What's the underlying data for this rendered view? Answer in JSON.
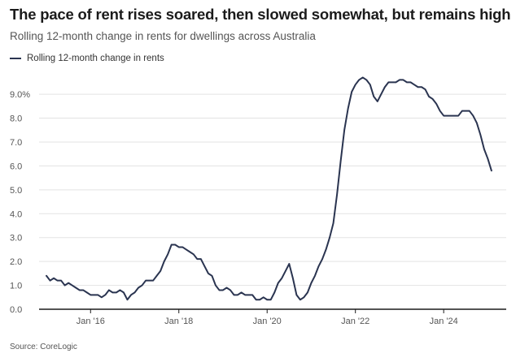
{
  "title": "The pace of rent rises soared, then slowed somewhat, but remains high",
  "subtitle": "Rolling 12-month change in rents for dwellings across Australia",
  "source": "Source: CoreLogic",
  "colors": {
    "line": "#2a3450",
    "grid": "#e3e3e3",
    "axis": "#1b1b1b"
  },
  "chart_data": {
    "type": "line",
    "title": "The pace of rent rises soared, then slowed somewhat, but remains high",
    "xlabel": "",
    "ylabel": "",
    "ylim": [
      0,
      10
    ],
    "xlim": [
      "2014-11",
      "2025-06"
    ],
    "grid": true,
    "legend_position": "top-left",
    "y_ticks": [
      {
        "value": 0,
        "label": "0.0"
      },
      {
        "value": 1,
        "label": "1.0"
      },
      {
        "value": 2,
        "label": "2.0"
      },
      {
        "value": 3,
        "label": "3.0"
      },
      {
        "value": 4,
        "label": "4.0"
      },
      {
        "value": 5,
        "label": "5.0"
      },
      {
        "value": 6,
        "label": "6.0"
      },
      {
        "value": 7,
        "label": "7.0"
      },
      {
        "value": 8,
        "label": "8.0"
      },
      {
        "value": 9,
        "label": "9.0%"
      }
    ],
    "x_ticks": [
      {
        "date": "2016-01",
        "label": "Jan '16"
      },
      {
        "date": "2018-01",
        "label": "Jan '18"
      },
      {
        "date": "2020-01",
        "label": "Jan '20"
      },
      {
        "date": "2022-01",
        "label": "Jan '22"
      },
      {
        "date": "2024-01",
        "label": "Jan '24"
      }
    ],
    "series": [
      {
        "name": "Rolling 12-month change in rents",
        "points": [
          [
            "2015-01",
            1.4
          ],
          [
            "2015-02",
            1.2
          ],
          [
            "2015-03",
            1.3
          ],
          [
            "2015-04",
            1.2
          ],
          [
            "2015-05",
            1.2
          ],
          [
            "2015-06",
            1.0
          ],
          [
            "2015-07",
            1.1
          ],
          [
            "2015-08",
            1.0
          ],
          [
            "2015-09",
            0.9
          ],
          [
            "2015-10",
            0.8
          ],
          [
            "2015-11",
            0.8
          ],
          [
            "2015-12",
            0.7
          ],
          [
            "2016-01",
            0.6
          ],
          [
            "2016-02",
            0.6
          ],
          [
            "2016-03",
            0.6
          ],
          [
            "2016-04",
            0.5
          ],
          [
            "2016-05",
            0.6
          ],
          [
            "2016-06",
            0.8
          ],
          [
            "2016-07",
            0.7
          ],
          [
            "2016-08",
            0.7
          ],
          [
            "2016-09",
            0.8
          ],
          [
            "2016-10",
            0.7
          ],
          [
            "2016-11",
            0.4
          ],
          [
            "2016-12",
            0.6
          ],
          [
            "2017-01",
            0.7
          ],
          [
            "2017-02",
            0.9
          ],
          [
            "2017-03",
            1.0
          ],
          [
            "2017-04",
            1.2
          ],
          [
            "2017-05",
            1.2
          ],
          [
            "2017-06",
            1.2
          ],
          [
            "2017-07",
            1.4
          ],
          [
            "2017-08",
            1.6
          ],
          [
            "2017-09",
            2.0
          ],
          [
            "2017-10",
            2.3
          ],
          [
            "2017-11",
            2.7
          ],
          [
            "2017-12",
            2.7
          ],
          [
            "2018-01",
            2.6
          ],
          [
            "2018-02",
            2.6
          ],
          [
            "2018-03",
            2.5
          ],
          [
            "2018-04",
            2.4
          ],
          [
            "2018-05",
            2.3
          ],
          [
            "2018-06",
            2.1
          ],
          [
            "2018-07",
            2.1
          ],
          [
            "2018-08",
            1.8
          ],
          [
            "2018-09",
            1.5
          ],
          [
            "2018-10",
            1.4
          ],
          [
            "2018-11",
            1.0
          ],
          [
            "2018-12",
            0.8
          ],
          [
            "2019-01",
            0.8
          ],
          [
            "2019-02",
            0.9
          ],
          [
            "2019-03",
            0.8
          ],
          [
            "2019-04",
            0.6
          ],
          [
            "2019-05",
            0.6
          ],
          [
            "2019-06",
            0.7
          ],
          [
            "2019-07",
            0.6
          ],
          [
            "2019-08",
            0.6
          ],
          [
            "2019-09",
            0.6
          ],
          [
            "2019-10",
            0.4
          ],
          [
            "2019-11",
            0.4
          ],
          [
            "2019-12",
            0.5
          ],
          [
            "2020-01",
            0.4
          ],
          [
            "2020-02",
            0.4
          ],
          [
            "2020-03",
            0.7
          ],
          [
            "2020-04",
            1.1
          ],
          [
            "2020-05",
            1.3
          ],
          [
            "2020-06",
            1.6
          ],
          [
            "2020-07",
            1.9
          ],
          [
            "2020-08",
            1.3
          ],
          [
            "2020-09",
            0.6
          ],
          [
            "2020-10",
            0.4
          ],
          [
            "2020-11",
            0.5
          ],
          [
            "2020-12",
            0.7
          ],
          [
            "2021-01",
            1.1
          ],
          [
            "2021-02",
            1.4
          ],
          [
            "2021-03",
            1.8
          ],
          [
            "2021-04",
            2.1
          ],
          [
            "2021-05",
            2.5
          ],
          [
            "2021-06",
            3.0
          ],
          [
            "2021-07",
            3.6
          ],
          [
            "2021-08",
            4.8
          ],
          [
            "2021-09",
            6.2
          ],
          [
            "2021-10",
            7.5
          ],
          [
            "2021-11",
            8.4
          ],
          [
            "2021-12",
            9.1
          ],
          [
            "2022-01",
            9.4
          ],
          [
            "2022-02",
            9.6
          ],
          [
            "2022-03",
            9.7
          ],
          [
            "2022-04",
            9.6
          ],
          [
            "2022-05",
            9.4
          ],
          [
            "2022-06",
            8.9
          ],
          [
            "2022-07",
            8.7
          ],
          [
            "2022-08",
            9.0
          ],
          [
            "2022-09",
            9.3
          ],
          [
            "2022-10",
            9.5
          ],
          [
            "2022-11",
            9.5
          ],
          [
            "2022-12",
            9.5
          ],
          [
            "2023-01",
            9.6
          ],
          [
            "2023-02",
            9.6
          ],
          [
            "2023-03",
            9.5
          ],
          [
            "2023-04",
            9.5
          ],
          [
            "2023-05",
            9.4
          ],
          [
            "2023-06",
            9.3
          ],
          [
            "2023-07",
            9.3
          ],
          [
            "2023-08",
            9.2
          ],
          [
            "2023-09",
            8.9
          ],
          [
            "2023-10",
            8.8
          ],
          [
            "2023-11",
            8.6
          ],
          [
            "2023-12",
            8.3
          ],
          [
            "2024-01",
            8.1
          ],
          [
            "2024-02",
            8.1
          ],
          [
            "2024-03",
            8.1
          ],
          [
            "2024-04",
            8.1
          ],
          [
            "2024-05",
            8.1
          ],
          [
            "2024-06",
            8.3
          ],
          [
            "2024-07",
            8.3
          ],
          [
            "2024-08",
            8.3
          ],
          [
            "2024-09",
            8.1
          ],
          [
            "2024-10",
            7.8
          ],
          [
            "2024-11",
            7.3
          ],
          [
            "2024-12",
            6.7
          ],
          [
            "2025-01",
            6.3
          ],
          [
            "2025-02",
            5.8
          ]
        ]
      }
    ]
  }
}
